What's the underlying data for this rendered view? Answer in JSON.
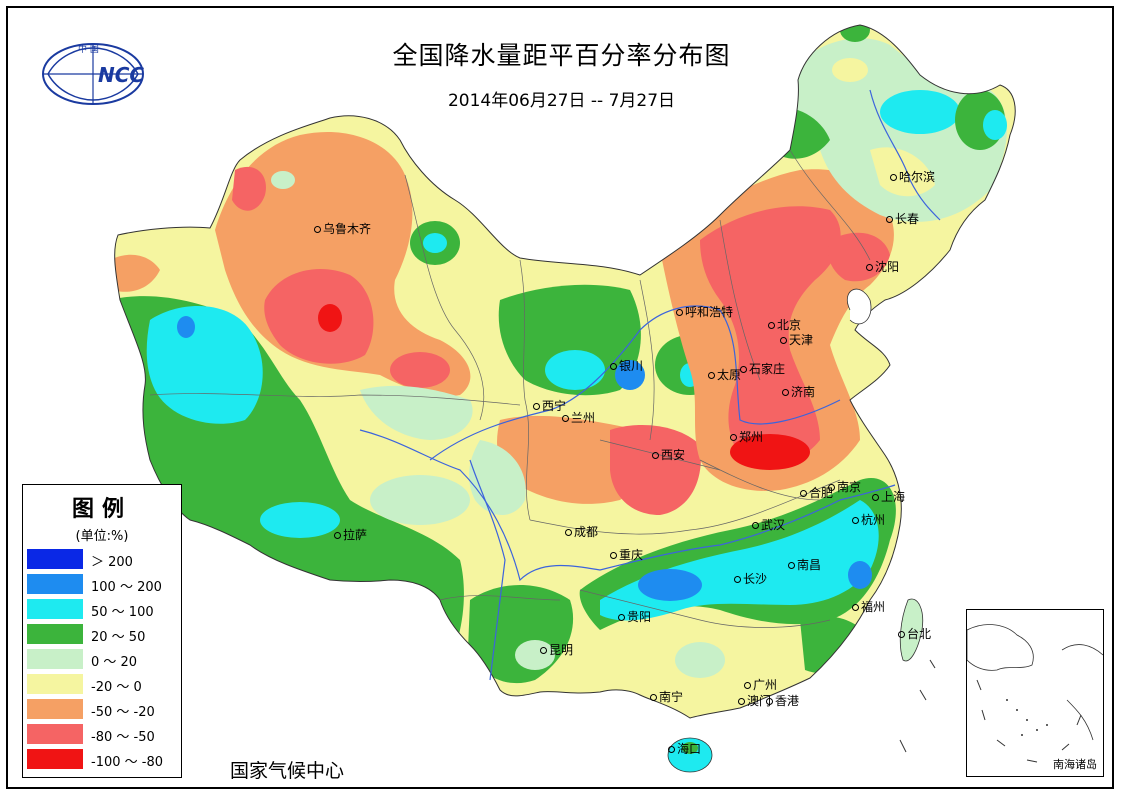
{
  "header": {
    "title": "全国降水量距平百分率分布图",
    "subtitle": "2014年06月27日 -- 7月27日",
    "logo_text": "NCC",
    "logo_top_text": "中 国"
  },
  "legend": {
    "title": "图例",
    "unit": "(单位:%)",
    "items": [
      {
        "label": "＞ 200",
        "color": "#0a28e6"
      },
      {
        "label": "100 ～ 200",
        "color": "#1e8cf0"
      },
      {
        "label": "50 ～ 100",
        "color": "#1eeaf0"
      },
      {
        "label": "20 ～ 50",
        "color": "#3cb43c"
      },
      {
        "label": "0 ～ 20",
        "color": "#c8f0c8"
      },
      {
        "label": "-20 ～ 0",
        "color": "#f5f5a0"
      },
      {
        "label": "-50 ～ -20",
        "color": "#f5a064"
      },
      {
        "label": "-80 ～ -50",
        "color": "#f56464"
      },
      {
        "label": "-100 ～ -80",
        "color": "#f01414"
      }
    ]
  },
  "footer": {
    "org": "国家气候中心"
  },
  "inset": {
    "label": "南海诸岛"
  },
  "cities": [
    {
      "name": "乌鲁木齐"
    },
    {
      "name": "哈尔滨"
    },
    {
      "name": "长春"
    },
    {
      "name": "沈阳"
    },
    {
      "name": "呼和浩特"
    },
    {
      "name": "北京"
    },
    {
      "name": "天津"
    },
    {
      "name": "银川"
    },
    {
      "name": "石家庄"
    },
    {
      "name": "太原"
    },
    {
      "name": "济南"
    },
    {
      "name": "西宁"
    },
    {
      "name": "兰州"
    },
    {
      "name": "郑州"
    },
    {
      "name": "西安"
    },
    {
      "name": "合肥"
    },
    {
      "name": "南京"
    },
    {
      "name": "上海"
    },
    {
      "name": "拉萨"
    },
    {
      "name": "成都"
    },
    {
      "name": "武汉"
    },
    {
      "name": "杭州"
    },
    {
      "name": "重庆"
    },
    {
      "name": "长沙"
    },
    {
      "name": "南昌"
    },
    {
      "name": "贵阳"
    },
    {
      "name": "福州"
    },
    {
      "name": "台北"
    },
    {
      "name": "昆明"
    },
    {
      "name": "广州"
    },
    {
      "name": "澳门"
    },
    {
      "name": "香港"
    },
    {
      "name": "南宁"
    },
    {
      "name": "海口"
    }
  ]
}
